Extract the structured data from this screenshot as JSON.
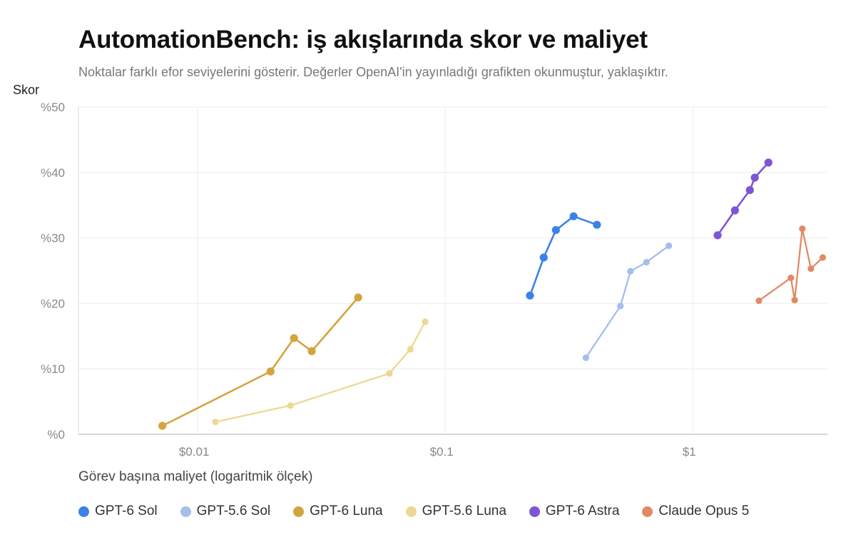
{
  "chart_data": {
    "type": "scatter",
    "title": "AutomationBench: iş akışlarında skor ve maliyet",
    "subtitle": "Noktalar farklı efor seviyelerini gösterir. Değerler OpenAI'in yayınladığı grafikten okunmuştur, yaklaşıktır.",
    "ylabel": "Skor",
    "xlabel": "Görev başına maliyet (logaritmik ölçek)",
    "x_scale": "log",
    "xlim": [
      0.0033,
      3.5
    ],
    "ylim": [
      0,
      50
    ],
    "x_ticks": [
      {
        "value": 0.01,
        "label": "$0.01"
      },
      {
        "value": 0.1,
        "label": "$0.1"
      },
      {
        "value": 1,
        "label": "$1"
      }
    ],
    "y_ticks": [
      {
        "value": 0,
        "label": "%0"
      },
      {
        "value": 10,
        "label": "%10"
      },
      {
        "value": 20,
        "label": "%20"
      },
      {
        "value": 30,
        "label": "%30"
      },
      {
        "value": 40,
        "label": "%40"
      },
      {
        "value": 50,
        "label": "%50"
      }
    ],
    "grid": true,
    "legend_position": "bottom",
    "series": [
      {
        "name": "GPT-6 Sol",
        "color": "#3b82e6",
        "marker": "large",
        "points": [
          [
            0.22,
            21.2
          ],
          [
            0.25,
            27
          ],
          [
            0.28,
            31.2
          ],
          [
            0.33,
            33.3
          ],
          [
            0.41,
            32
          ]
        ]
      },
      {
        "name": "GPT-5.6 Sol",
        "color": "#a3bfea",
        "marker": "small",
        "points": [
          [
            0.37,
            11.7
          ],
          [
            0.51,
            19.6
          ],
          [
            0.56,
            24.9
          ],
          [
            0.65,
            26.3
          ],
          [
            0.8,
            28.8
          ]
        ]
      },
      {
        "name": "GPT-6 Luna",
        "color": "#d4a43e",
        "marker": "large",
        "points": [
          [
            0.0072,
            1.3
          ],
          [
            0.0197,
            9.6
          ],
          [
            0.0245,
            14.7
          ],
          [
            0.0289,
            12.7
          ],
          [
            0.0445,
            20.9
          ]
        ]
      },
      {
        "name": "GPT-5.6 Luna",
        "color": "#eed793",
        "marker": "small",
        "points": [
          [
            0.0118,
            1.9
          ],
          [
            0.0237,
            4.4
          ],
          [
            0.0595,
            9.3
          ],
          [
            0.0723,
            13
          ],
          [
            0.083,
            17.2
          ]
        ]
      },
      {
        "name": "GPT-6 Astra",
        "color": "#7e55d6",
        "marker": "large",
        "points": [
          [
            1.26,
            30.4
          ],
          [
            1.48,
            34.2
          ],
          [
            1.7,
            37.3
          ],
          [
            1.78,
            39.2
          ],
          [
            2.02,
            41.5
          ]
        ]
      },
      {
        "name": "Claude Opus 5",
        "color": "#e08b62",
        "marker": "small",
        "points": [
          [
            1.85,
            20.4
          ],
          [
            2.49,
            23.9
          ],
          [
            2.58,
            20.5
          ],
          [
            2.77,
            31.4
          ],
          [
            3.0,
            25.3
          ],
          [
            3.35,
            27
          ]
        ]
      }
    ]
  }
}
